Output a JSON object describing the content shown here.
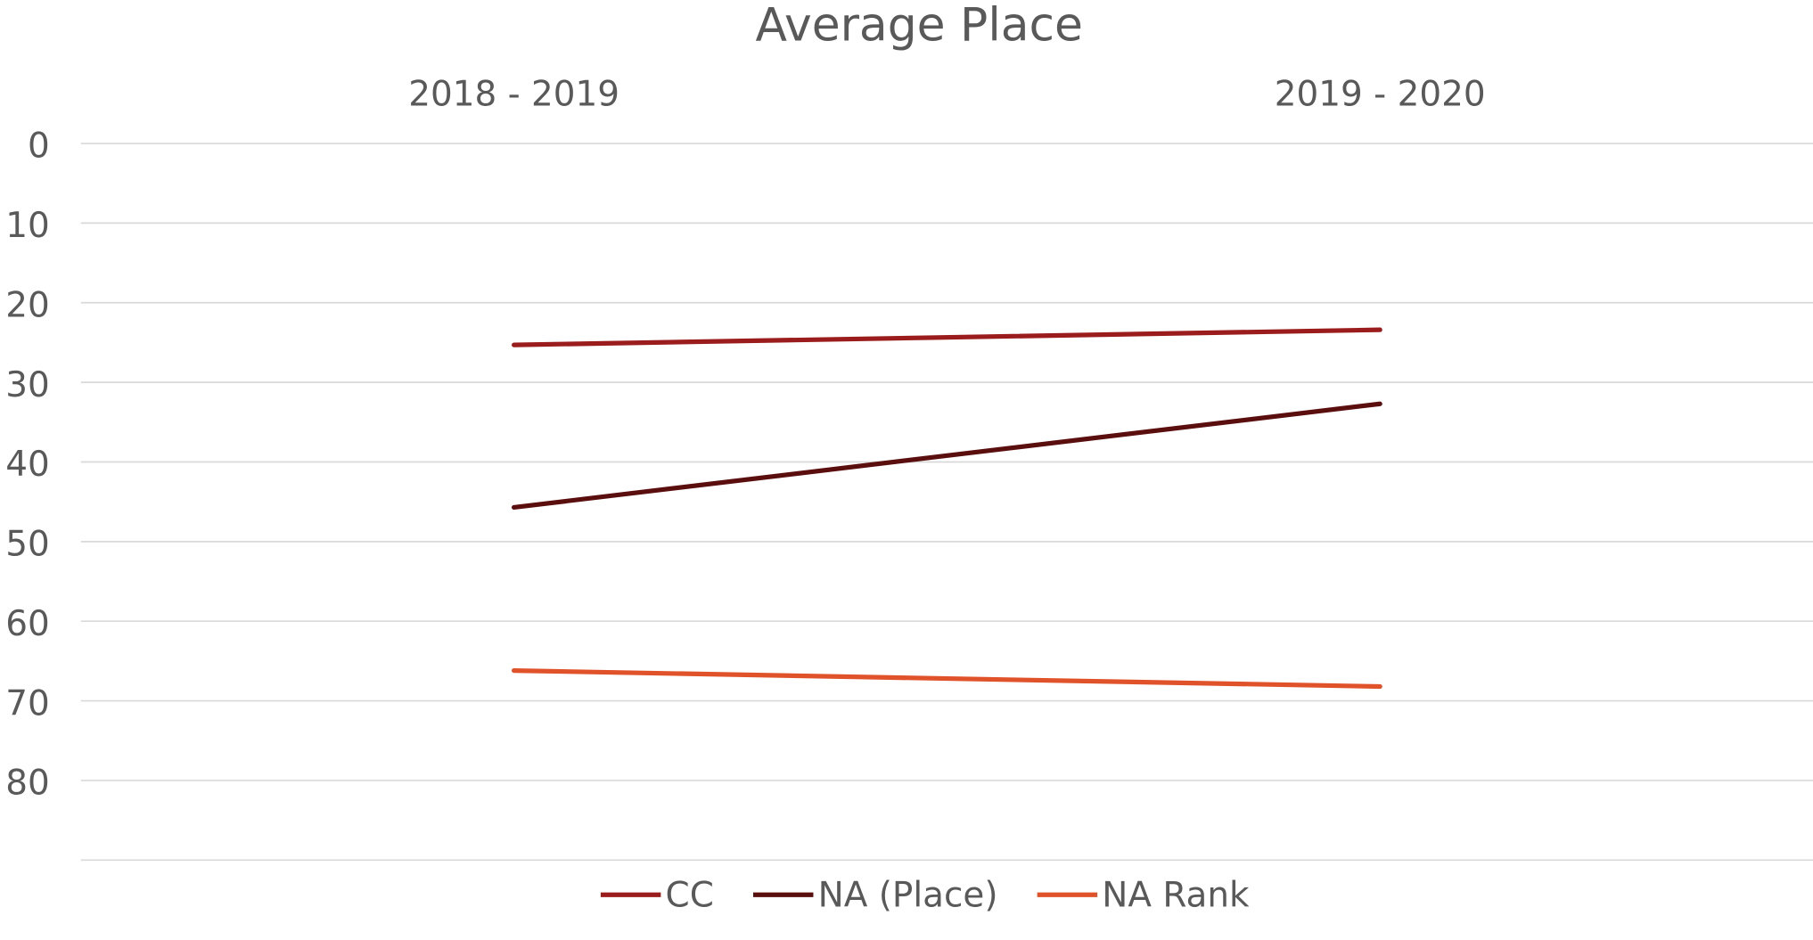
{
  "chart_data": {
    "type": "line",
    "title": "Average Place",
    "categories": [
      "2018 - 2019",
      "2019 - 2020"
    ],
    "series": [
      {
        "name": "CC",
        "color": "#9b1c1c",
        "values": [
          25.3,
          23.4
        ]
      },
      {
        "name": "NA (Place)",
        "color": "#5a0e0e",
        "values": [
          45.7,
          32.7
        ]
      },
      {
        "name": "NA Rank",
        "color": "#e0522a",
        "values": [
          66.2,
          68.2
        ]
      }
    ],
    "ylim": [
      0,
      90
    ],
    "yticks": [
      0,
      10,
      20,
      30,
      40,
      50,
      60,
      70,
      80
    ],
    "y_inverted": true,
    "grid": true,
    "legend": "bottom"
  }
}
